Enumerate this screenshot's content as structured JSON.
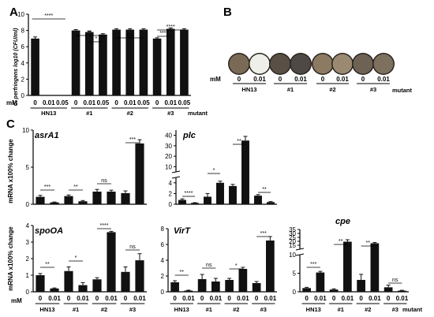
{
  "panels": {
    "a": "A",
    "b": "B",
    "c": "C"
  },
  "colors": {
    "bar": "#111111",
    "axis": "#000000",
    "white": "#ffffff"
  },
  "panel_a": {
    "ylabel": "C. perfringens log10 (CFU/ml)",
    "mM_label": "mM",
    "mutant_label": "mutant"
  },
  "panel_b": {
    "mM_label": "mM",
    "mutant_label": "mutant",
    "conc": [
      "0",
      "0.01",
      "0",
      "0.01",
      "0",
      "0.01",
      "0",
      "0.01"
    ],
    "groups": [
      "HN13",
      "#1",
      "#2",
      "#3"
    ],
    "well_colors": [
      "#7a6a55",
      "#efeee8",
      "#5a4f44",
      "#4e4944",
      "#8d7a62",
      "#9a8a72",
      "#6e6254",
      "#7d705f"
    ]
  },
  "panel_c": {
    "ylabel_top": "mRNA x100% change",
    "ylabel_bottom": "mRNA x100% change",
    "mM_label": "mM",
    "mutant_label": "mutant"
  },
  "chart_data": [
    {
      "id": "A",
      "type": "bar",
      "ylabel": "C. perfringens log10 (CFU/ml)",
      "ylim": [
        0,
        10
      ],
      "yticks": [
        "0",
        "2",
        "4",
        "6",
        "8",
        "10"
      ],
      "x_labels": [
        "0",
        "0.01",
        "0.05",
        "0",
        "0.01",
        "0.05",
        "0",
        "0.01",
        "0.05",
        "0",
        "0.01",
        "0.05"
      ],
      "groups": [
        "HN13",
        "#1",
        "#2",
        "#3"
      ],
      "values": [
        7.0,
        0,
        0,
        8.0,
        7.8,
        7.5,
        8.1,
        8.1,
        8.1,
        7.0,
        8.2,
        8.1
      ],
      "errors": [
        0.2,
        0,
        0,
        0.1,
        0.1,
        0.1,
        0.1,
        0.1,
        0.1,
        0.1,
        0.1,
        0.1
      ],
      "significance": [
        "****",
        "**",
        "*",
        "ns",
        "****",
        "****"
      ]
    },
    {
      "id": "asrA1",
      "type": "bar",
      "title": "asrA1",
      "ylim": [
        0,
        10
      ],
      "yticks": [
        "0",
        "5",
        "10"
      ],
      "values": [
        1.0,
        0.25,
        1.1,
        0.4,
        1.7,
        1.7,
        1.5,
        8.2
      ],
      "errors": [
        0.2,
        0.05,
        0.15,
        0.1,
        0.3,
        0.2,
        0.3,
        0.5
      ],
      "significance": [
        "***",
        "**",
        "ns",
        "***"
      ]
    },
    {
      "id": "plc",
      "type": "bar",
      "title": "plc",
      "ylim": [
        0,
        45
      ],
      "yticks": [
        "0",
        "2",
        "4",
        "10",
        "20",
        "30",
        "40"
      ],
      "values": [
        0.8,
        0.25,
        1.4,
        4.0,
        3.4,
        35,
        1.6,
        0.4
      ],
      "errors": [
        0.2,
        0.05,
        0.6,
        0.3,
        0.3,
        4,
        0.2,
        0.1
      ],
      "significance": [
        "****",
        "*",
        "**",
        "**"
      ]
    },
    {
      "id": "spoOA",
      "type": "bar",
      "title": "spoOA",
      "ylim": [
        0,
        4
      ],
      "yticks": [
        "0",
        "1",
        "2",
        "3",
        "4"
      ],
      "x_labels": [
        "0",
        "0.01",
        "0",
        "0.01",
        "0",
        "0.01",
        "0",
        "0.01"
      ],
      "groups": [
        "HN13",
        "#1",
        "#2",
        "#3"
      ],
      "values": [
        1.0,
        0.2,
        1.25,
        0.4,
        0.75,
        3.6,
        1.2,
        1.9
      ],
      "errors": [
        0.1,
        0.03,
        0.25,
        0.15,
        0.1,
        0.05,
        0.3,
        0.4
      ],
      "significance": [
        "**",
        "*",
        "****",
        "ns"
      ]
    },
    {
      "id": "VirT",
      "type": "bar",
      "title": "VirT",
      "ylim": [
        0,
        8
      ],
      "yticks": [
        "0",
        "2",
        "4",
        "6",
        "8"
      ],
      "x_labels": [
        "0",
        "0.01",
        "0",
        "0.01",
        "0",
        "0.01",
        "0",
        "0.01"
      ],
      "groups": [
        "HN13",
        "#1",
        "#2",
        "#3"
      ],
      "values": [
        1.2,
        0.15,
        1.6,
        1.3,
        1.5,
        2.9,
        1.1,
        6.5
      ],
      "errors": [
        0.2,
        0.05,
        0.6,
        0.4,
        0.2,
        0.2,
        0.2,
        0.5
      ],
      "significance": [
        "**",
        "ns",
        "*",
        "***"
      ]
    },
    {
      "id": "cpe",
      "type": "bar",
      "title": "cpe",
      "yticks": [
        "0",
        "5",
        "10",
        "15",
        "20",
        "25",
        "30",
        "35"
      ],
      "x_labels": [
        "0",
        "0.01",
        "0",
        "0.01",
        "0",
        "0.01",
        "0",
        "0.01"
      ],
      "groups": [
        "HN13",
        "#1",
        "#2",
        "#3"
      ],
      "values": [
        1.0,
        5.2,
        0.6,
        19.5,
        3.2,
        17.5,
        1.2,
        0.3
      ],
      "errors": [
        0.2,
        0.3,
        0.2,
        2.5,
        1.5,
        1.0,
        0.6,
        0.1
      ],
      "significance": [
        "***",
        "**",
        "**",
        "ns"
      ]
    }
  ]
}
